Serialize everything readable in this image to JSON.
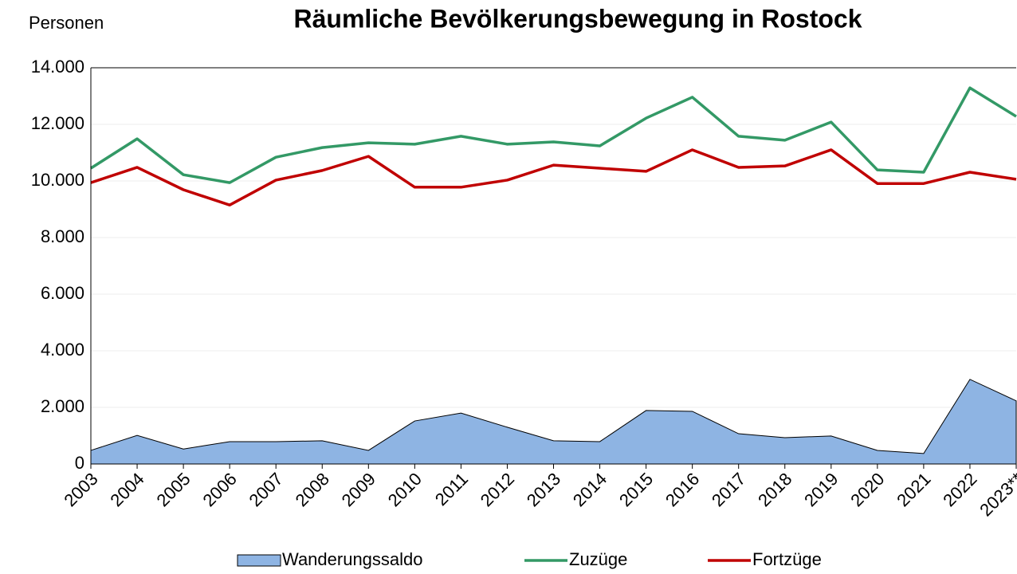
{
  "chart_data": {
    "type": "line",
    "title": "Räumliche Bevölkerungsbewegung in Rostock",
    "y_label": "Personen",
    "categories": [
      "2003",
      "2004",
      "2005",
      "2006",
      "2007",
      "2008",
      "2009",
      "2010",
      "2011",
      "2012",
      "2013",
      "2014",
      "2015",
      "2016",
      "2017",
      "2018",
      "2019",
      "2020",
      "2021",
      "2022",
      "2023**"
    ],
    "series": [
      {
        "name": "Wanderungssaldo",
        "type": "area",
        "color": "#8eb4e3",
        "values": [
          480,
          1010,
          530,
          790,
          790,
          820,
          480,
          1520,
          1800,
          1300,
          820,
          790,
          1890,
          1860,
          1070,
          930,
          990,
          480,
          370,
          2990,
          2230
        ]
      },
      {
        "name": "Zuzüge",
        "type": "line",
        "color": "#339966",
        "values": [
          10450,
          11490,
          10220,
          9940,
          10840,
          11180,
          11350,
          11300,
          11580,
          11300,
          11380,
          11240,
          12220,
          12960,
          11580,
          11440,
          12080,
          10390,
          10310,
          13290,
          12280
        ]
      },
      {
        "name": "Fortzüge",
        "type": "line",
        "color": "#c00000",
        "values": [
          9940,
          10480,
          9690,
          9150,
          10030,
          10370,
          10870,
          9780,
          9780,
          10030,
          10560,
          10450,
          10340,
          11100,
          10480,
          10530,
          11100,
          9910,
          9910,
          10310,
          10060
        ]
      }
    ],
    "ylim": [
      0,
      14000
    ],
    "yticks": [
      0,
      {
        "value": 2000,
        "label": "2.000"
      },
      {
        "value": 4000,
        "label": "4.000"
      },
      {
        "value": 6000,
        "label": "6.000"
      },
      {
        "value": 8000,
        "label": "8.000"
      },
      {
        "value": 10000,
        "label": "10.000"
      },
      {
        "value": 12000,
        "label": "12.000"
      },
      {
        "value": 14000,
        "label": "14.000"
      }
    ],
    "grid": true,
    "legend": "bottom"
  }
}
